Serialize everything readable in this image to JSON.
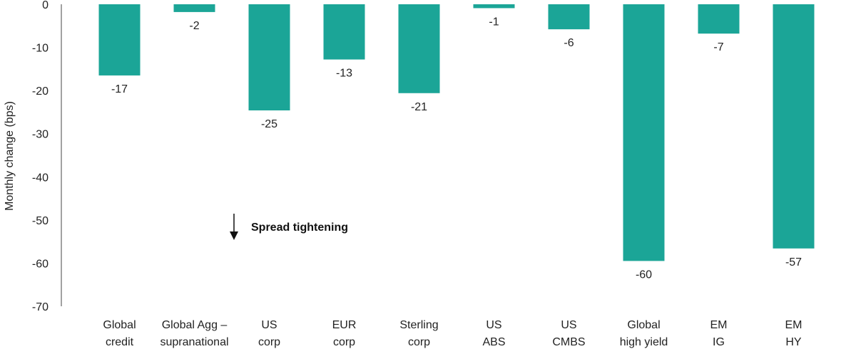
{
  "chart_data": {
    "type": "bar",
    "ylabel": "Monthly change (bps)",
    "ylim": [
      -70,
      0
    ],
    "yticks": [
      0,
      -10,
      -20,
      -30,
      -40,
      -50,
      -60,
      -70
    ],
    "grid": false,
    "bar_color": "#1ba597",
    "categories": [
      [
        "Global",
        "credit"
      ],
      [
        "Global Agg –",
        "supranational"
      ],
      [
        "US",
        "corp"
      ],
      [
        "EUR",
        "corp"
      ],
      [
        "Sterling",
        "corp"
      ],
      [
        "US",
        "ABS"
      ],
      [
        "US",
        "CMBS"
      ],
      [
        "Global",
        "high yield"
      ],
      [
        "EM",
        "IG"
      ],
      [
        "EM",
        "HY"
      ]
    ],
    "values": [
      -16.5,
      -1.8,
      -24.6,
      -12.8,
      -20.6,
      -0.9,
      -5.8,
      -59.5,
      -6.8,
      -56.6
    ],
    "data_labels": [
      "-17",
      "-2",
      "-25",
      "-13",
      "-21",
      "-1",
      "-6",
      "-60",
      "-7",
      "-57"
    ],
    "annotation": "Spread tightening"
  }
}
